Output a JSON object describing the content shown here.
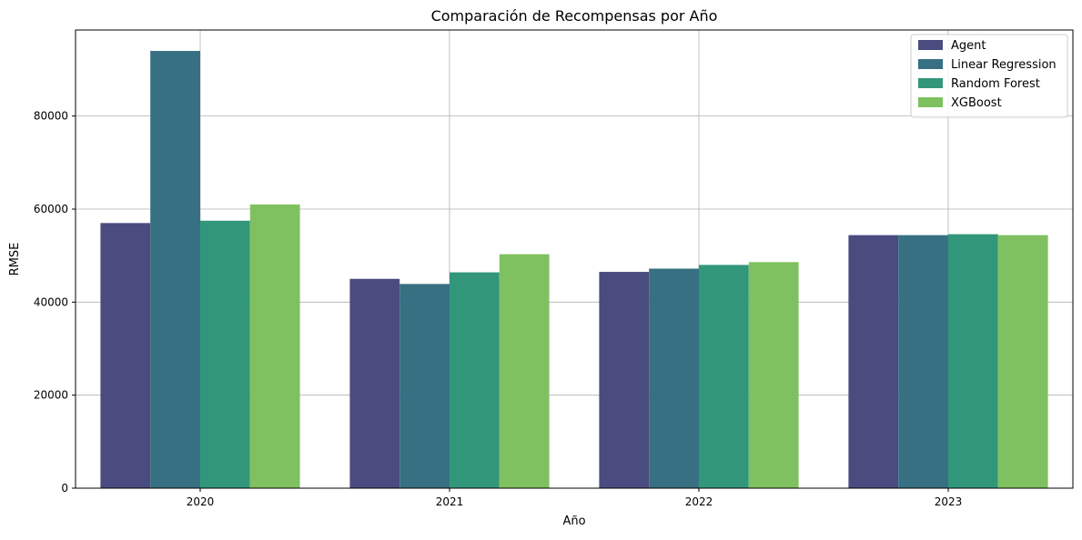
{
  "chart_data": {
    "type": "bar",
    "title": "Comparación de Recompensas por Año",
    "xlabel": "Año",
    "ylabel": "RMSE",
    "categories": [
      "2020",
      "2021",
      "2022",
      "2023"
    ],
    "series": [
      {
        "name": "Agent",
        "color": "#4a4b7e",
        "values": [
          57000,
          45000,
          46500,
          54400
        ]
      },
      {
        "name": "Linear Regression",
        "color": "#367082",
        "values": [
          94000,
          43900,
          47200,
          54400
        ]
      },
      {
        "name": "Random Forest",
        "color": "#32977a",
        "values": [
          57500,
          46400,
          48000,
          54600
        ]
      },
      {
        "name": "XGBoost",
        "color": "#7fc160",
        "values": [
          61000,
          50300,
          48600,
          54400
        ]
      }
    ],
    "ylim": [
      0,
      98500
    ],
    "yticks": [
      0,
      20000,
      40000,
      60000,
      80000
    ],
    "grid": true,
    "legend_position": "top-right"
  }
}
